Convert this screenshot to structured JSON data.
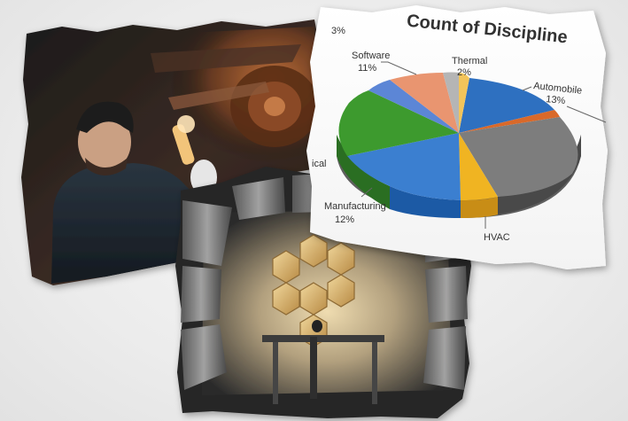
{
  "collage": {
    "pie_photo": {
      "title": "Count of Discipline",
      "labels": [
        {
          "name": "Software",
          "pct": "11%"
        },
        {
          "name": "Thermal",
          "pct": "2%"
        },
        {
          "name": "Automobile",
          "pct": "13%"
        },
        {
          "name": "Manufacturing",
          "pct": "12%"
        },
        {
          "name": "HVAC",
          "pct": ""
        },
        {
          "name": "ical",
          "pct": ""
        },
        {
          "name": "3%",
          "pct": ""
        }
      ]
    }
  },
  "colors": {
    "background": "#ececec",
    "slice_blue": "#2e6fc0",
    "slice_green": "#3d9a2e",
    "slice_grey": "#7d7d7d",
    "slice_orange": "#e07a3c",
    "slice_yellow": "#f0b422",
    "mirror_gold": "#d6b06a"
  },
  "chart_data": {
    "type": "pie",
    "title": "Count of Discipline",
    "categories": [
      "Software",
      "Thermal",
      "Automobile",
      "Manufacturing"
    ],
    "values": [
      11,
      2,
      13,
      12
    ],
    "note_values_are_percent": true
  }
}
